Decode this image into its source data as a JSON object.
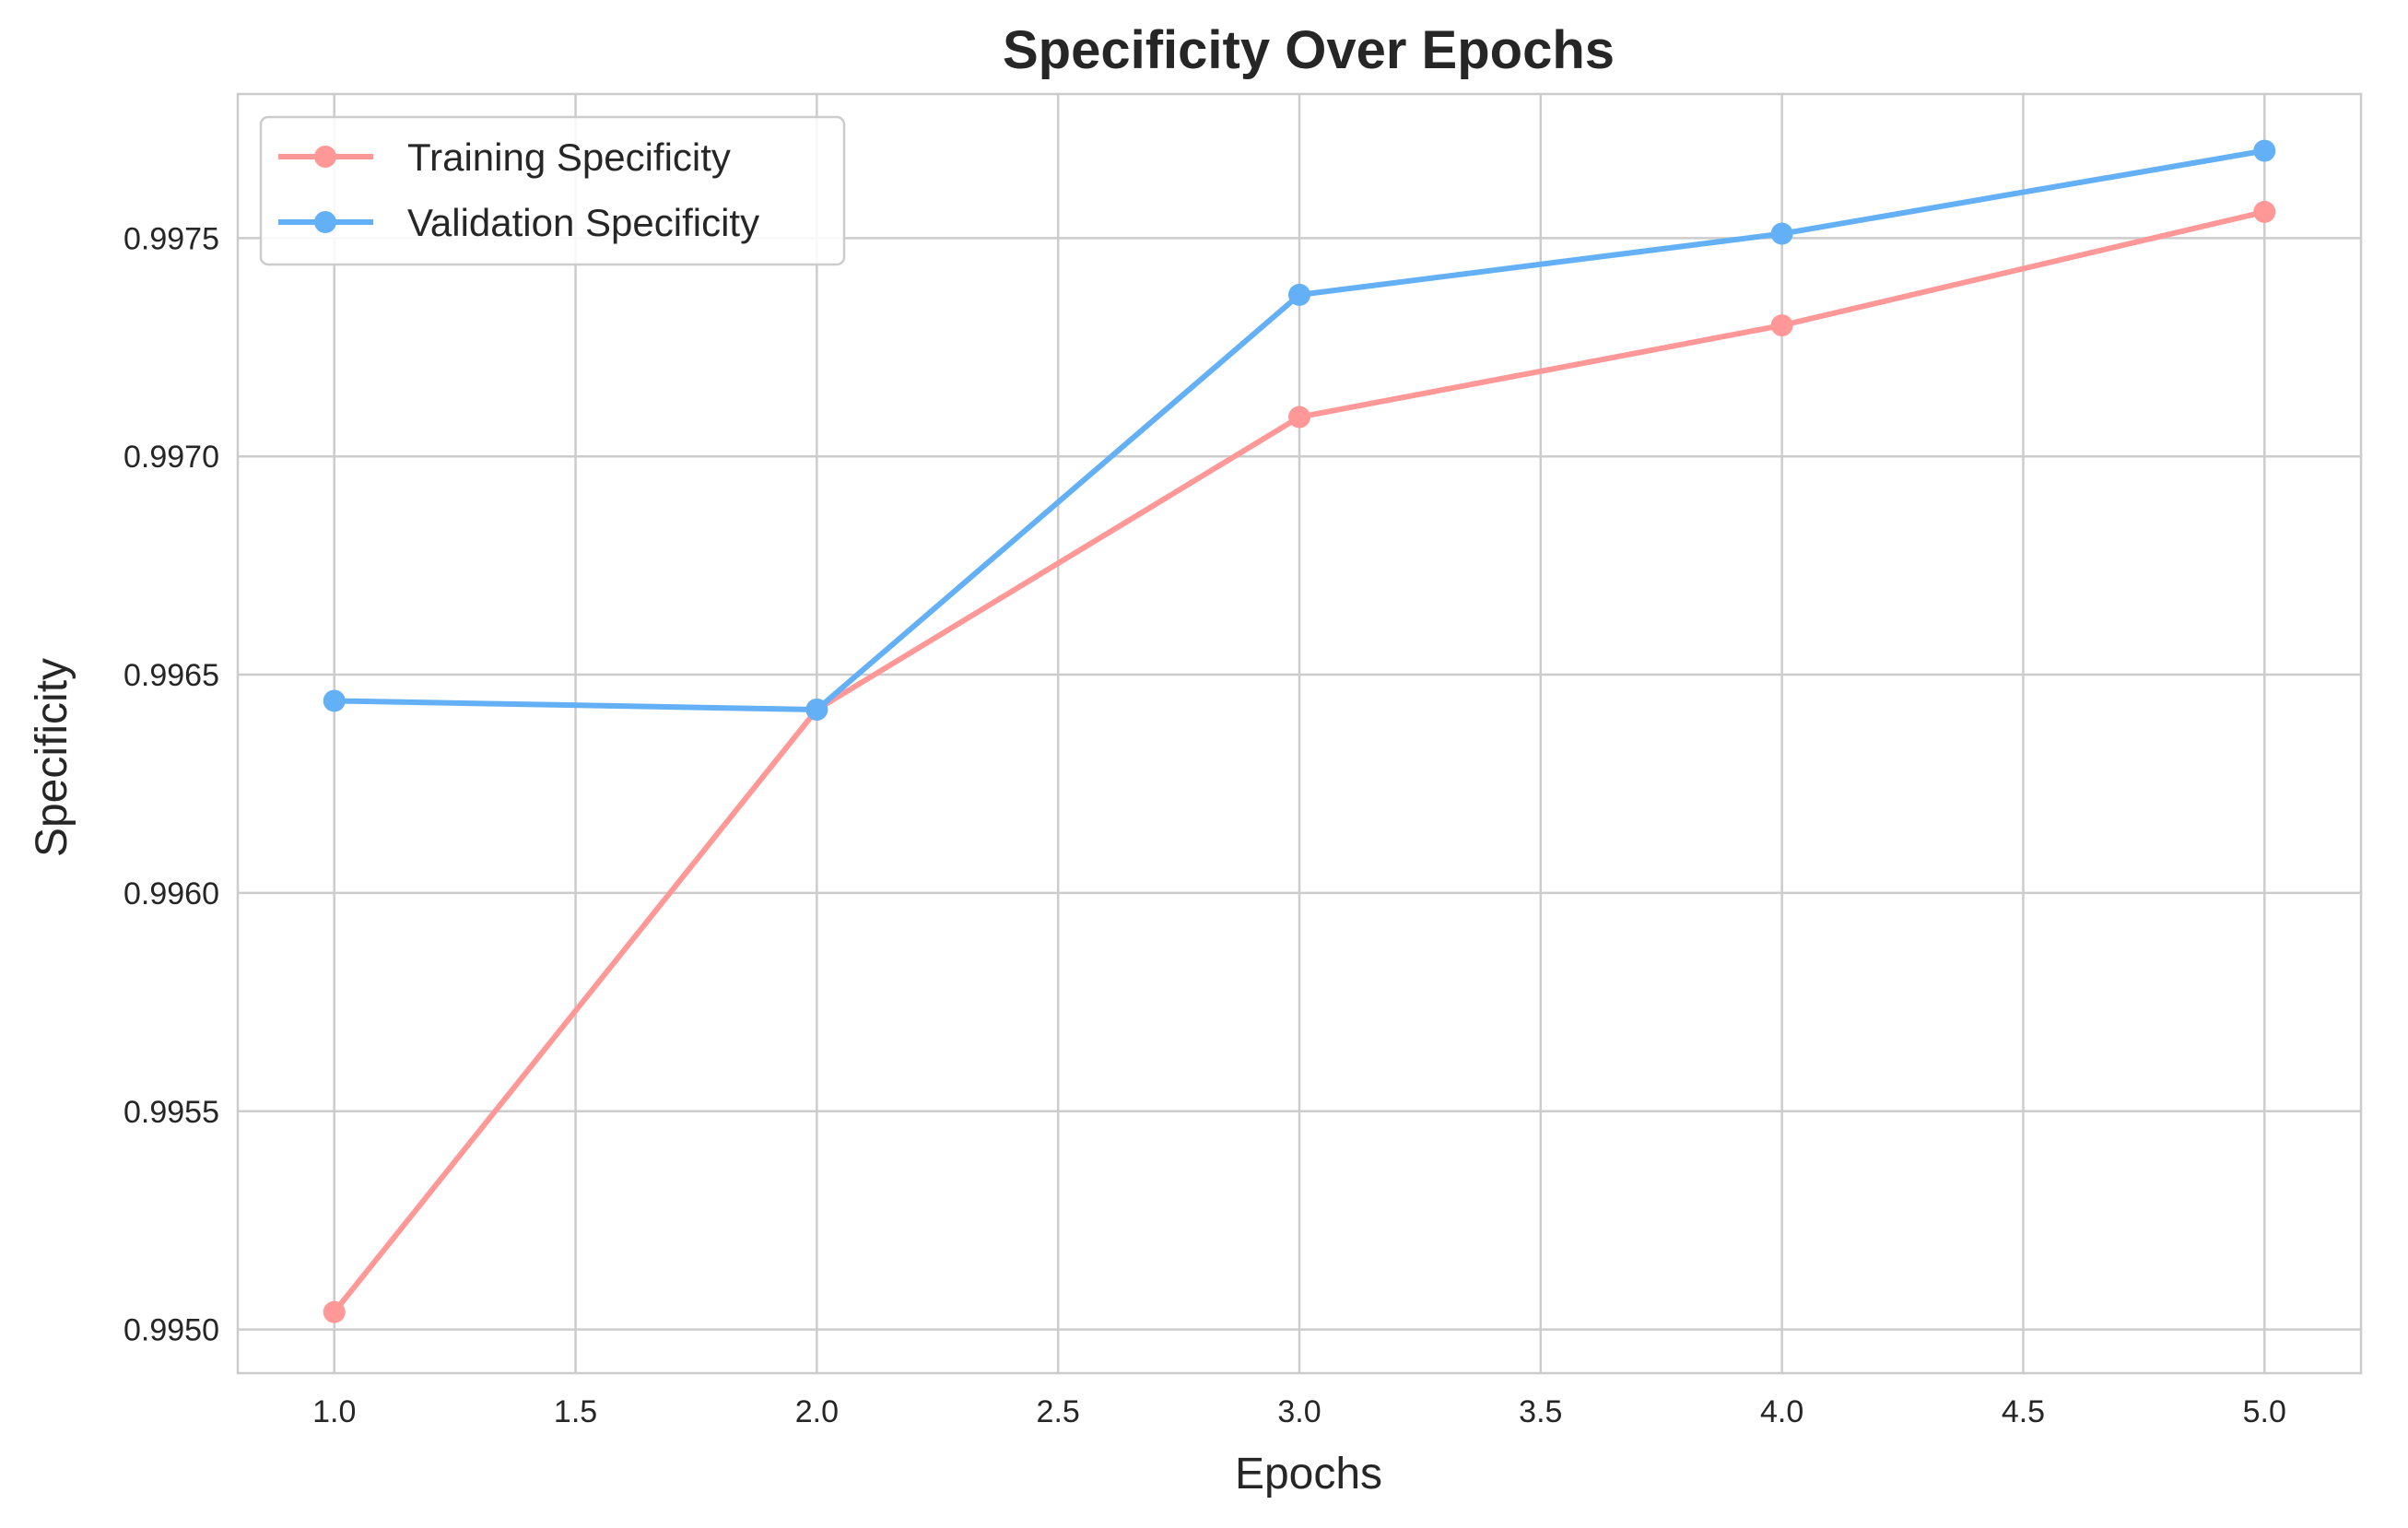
{
  "chart_data": {
    "type": "line",
    "title": "Specificity Over Epochs",
    "xlabel": "Epochs",
    "ylabel": "Specificity",
    "x": [
      1,
      2,
      3,
      4,
      5
    ],
    "xlim": [
      0.8,
      5.2
    ],
    "ylim": [
      0.9949,
      0.99783
    ],
    "xticks": [
      1.0,
      1.5,
      2.0,
      2.5,
      3.0,
      3.5,
      4.0,
      4.5,
      5.0
    ],
    "xtick_labels": [
      "1.0",
      "1.5",
      "2.0",
      "2.5",
      "3.0",
      "3.5",
      "4.0",
      "4.5",
      "5.0"
    ],
    "yticks": [
      0.995,
      0.9955,
      0.996,
      0.9965,
      0.997,
      0.9975
    ],
    "ytick_labels": [
      "0.9950",
      "0.9955",
      "0.9960",
      "0.9965",
      "0.9970",
      "0.9975"
    ],
    "grid": true,
    "legend_position": "top-left",
    "series": [
      {
        "name": "Training Specificity",
        "color": "#ff9896",
        "values": [
          0.99504,
          0.99642,
          0.99709,
          0.9973,
          0.99756
        ]
      },
      {
        "name": "Validation Specificity",
        "color": "#64b0f6",
        "values": [
          0.99644,
          0.99642,
          0.99737,
          0.99751,
          0.9977
        ]
      }
    ]
  }
}
